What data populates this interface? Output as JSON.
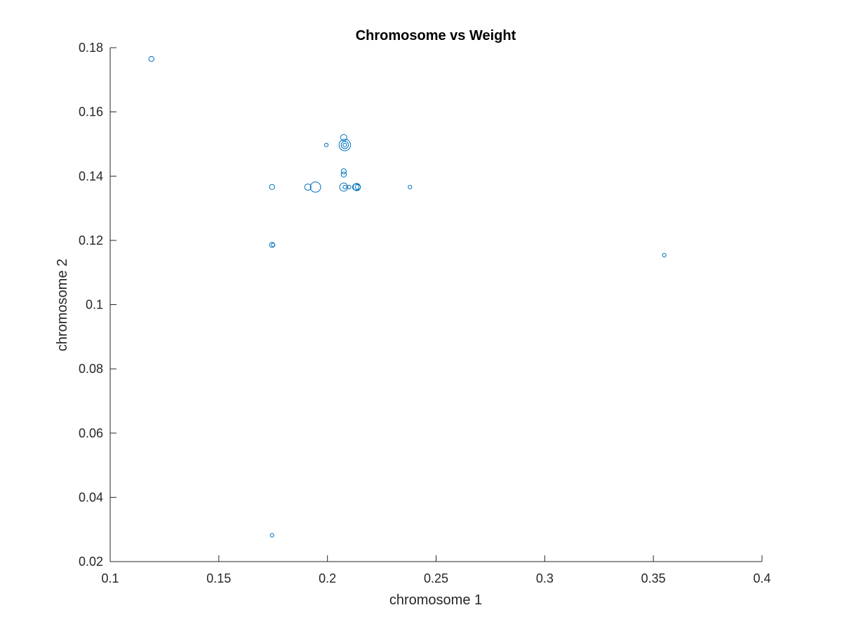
{
  "chart_data": {
    "type": "scatter",
    "title": "Chromosome vs Weight",
    "xlabel": "chromosome 1",
    "ylabel": "chromosome 2",
    "xlim": [
      0.1,
      0.4
    ],
    "ylim": [
      0.02,
      0.18
    ],
    "xticks": [
      "0.1",
      "0.15",
      "0.2",
      "0.25",
      "0.3",
      "0.35",
      "0.4"
    ],
    "yticks": [
      "0.02",
      "0.04",
      "0.06",
      "0.08",
      "0.1",
      "0.12",
      "0.14",
      "0.16",
      "0.18"
    ],
    "grid": false,
    "legend": "none",
    "marker": "open-circle",
    "marker_color": "#0072BD",
    "points": [
      {
        "x": 0.119,
        "y": 0.1765,
        "weight": 2
      },
      {
        "x": 0.1995,
        "y": 0.1497,
        "weight": 1
      },
      {
        "x": 0.2075,
        "y": 0.152,
        "weight": 3
      },
      {
        "x": 0.208,
        "y": 0.1497,
        "weight": 10
      },
      {
        "x": 0.208,
        "y": 0.1497,
        "weight": 4
      },
      {
        "x": 0.208,
        "y": 0.1497,
        "weight": 1
      },
      {
        "x": 0.2075,
        "y": 0.1415,
        "weight": 2
      },
      {
        "x": 0.2075,
        "y": 0.1405,
        "weight": 2
      },
      {
        "x": 0.1745,
        "y": 0.1366,
        "weight": 2
      },
      {
        "x": 0.191,
        "y": 0.1366,
        "weight": 3
      },
      {
        "x": 0.1945,
        "y": 0.1366,
        "weight": 8
      },
      {
        "x": 0.2075,
        "y": 0.1366,
        "weight": 5
      },
      {
        "x": 0.208,
        "y": 0.1366,
        "weight": 1
      },
      {
        "x": 0.21,
        "y": 0.1366,
        "weight": 1
      },
      {
        "x": 0.213,
        "y": 0.1366,
        "weight": 3
      },
      {
        "x": 0.2135,
        "y": 0.1366,
        "weight": 4
      },
      {
        "x": 0.214,
        "y": 0.1366,
        "weight": 2
      },
      {
        "x": 0.238,
        "y": 0.1366,
        "weight": 1
      },
      {
        "x": 0.1745,
        "y": 0.1186,
        "weight": 2
      },
      {
        "x": 0.175,
        "y": 0.1186,
        "weight": 1
      },
      {
        "x": 0.355,
        "y": 0.1154,
        "weight": 1
      },
      {
        "x": 0.1745,
        "y": 0.0282,
        "weight": 1
      }
    ]
  }
}
